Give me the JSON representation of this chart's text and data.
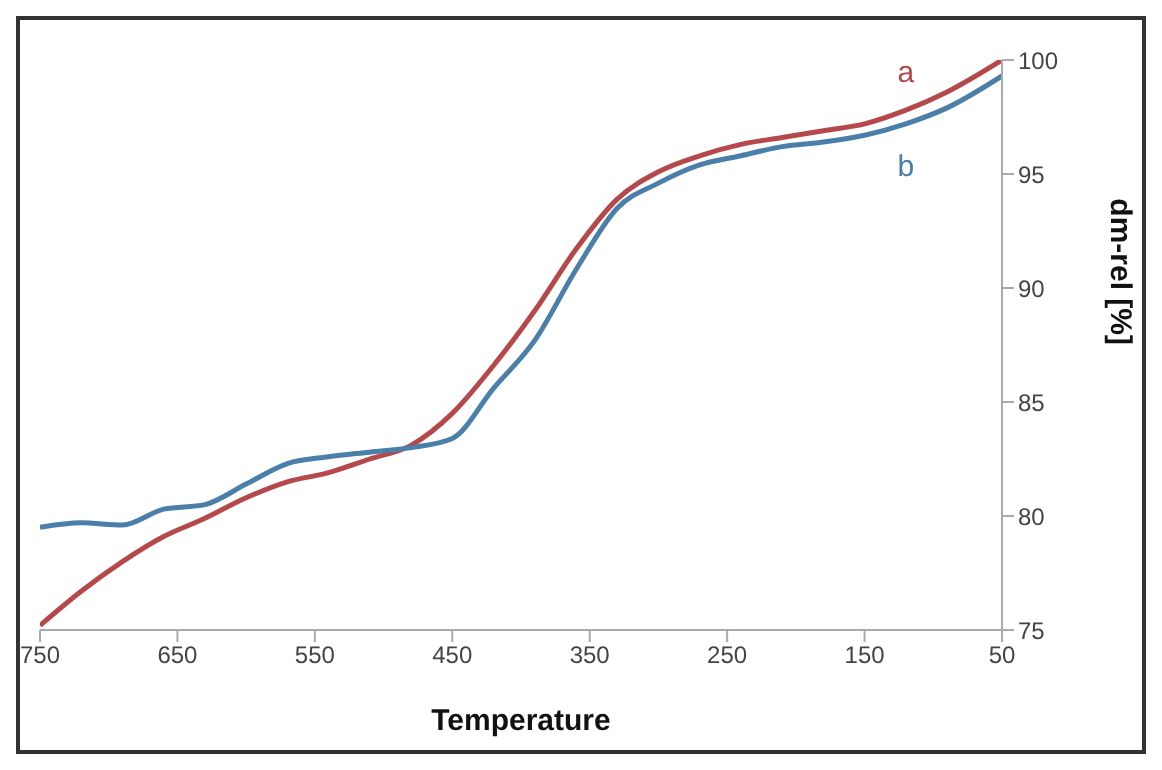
{
  "chart_data": {
    "type": "line",
    "xlabel": "Temperature",
    "ylabel": "dm-rel [%]",
    "x": [
      750,
      720,
      690,
      660,
      630,
      600,
      570,
      540,
      510,
      480,
      450,
      420,
      390,
      360,
      330,
      300,
      270,
      240,
      210,
      180,
      150,
      120,
      90,
      50
    ],
    "series": [
      {
        "name": "a",
        "color": "#b5484b",
        "values": [
          75.2,
          76.7,
          78.0,
          79.1,
          79.9,
          80.8,
          81.5,
          81.9,
          82.5,
          83.1,
          84.5,
          86.6,
          89.0,
          91.7,
          93.9,
          95.1,
          95.8,
          96.3,
          96.6,
          96.9,
          97.2,
          97.8,
          98.6,
          100
        ]
      },
      {
        "name": "b",
        "color": "#4a7faa",
        "values": [
          79.5,
          79.7,
          79.6,
          80.3,
          80.5,
          81.4,
          82.3,
          82.6,
          82.8,
          83.0,
          83.4,
          85.6,
          87.7,
          90.8,
          93.5,
          94.6,
          95.4,
          95.8,
          96.2,
          96.4,
          96.7,
          97.2,
          97.9,
          99.3
        ]
      }
    ],
    "xlim": [
      750,
      50
    ],
    "xticks": [
      750,
      650,
      550,
      450,
      350,
      250,
      150,
      50
    ],
    "ylim": [
      75,
      100
    ],
    "yticks": [
      75,
      80,
      85,
      90,
      95,
      100
    ],
    "grid": false,
    "legend": false,
    "marker": "none",
    "line_style": "solid"
  }
}
